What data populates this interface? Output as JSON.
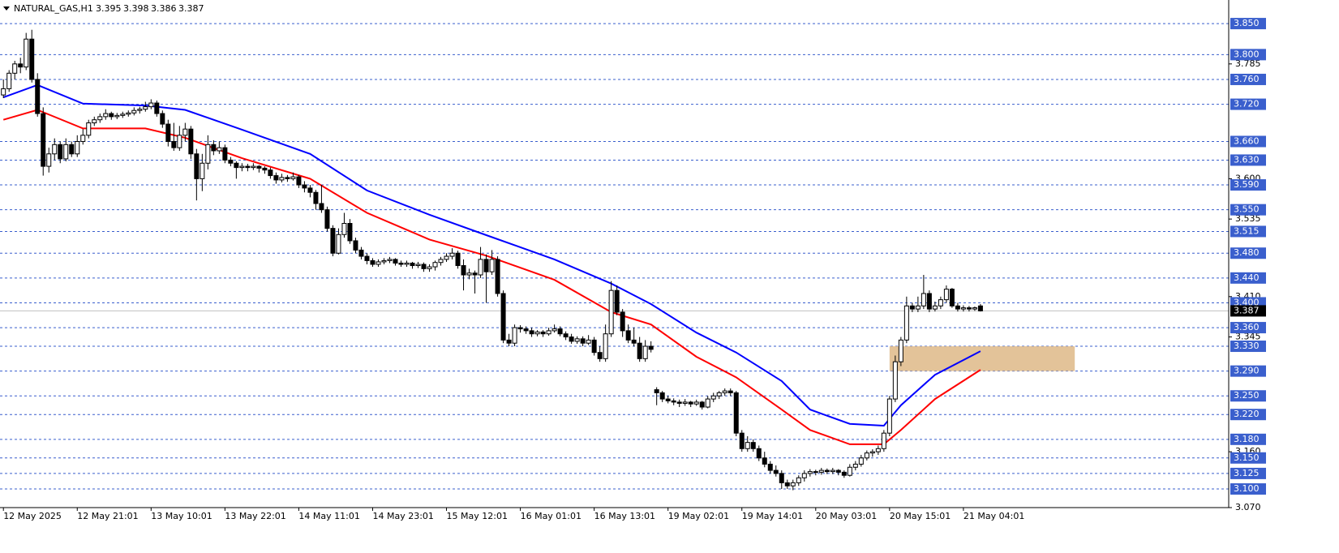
{
  "chart_data": {
    "type": "candlestick",
    "symbol": "NATURAL_GAS,H1",
    "up_color": "#ffffff",
    "down_color": "#000000",
    "ylim": [
      3.07,
      3.888
    ],
    "yticks": [
      3.785,
      {
        "value": 3.6,
        "label": "3.600"
      },
      3.535,
      {
        "value": 3.41,
        "label": "3.410"
      },
      3.345,
      {
        "value": 3.16,
        "label": "3.160"
      },
      {
        "value": 3.07,
        "label": "3.070"
      }
    ],
    "xlim": [
      -0.6,
      215.7
    ],
    "xticks": [
      {
        "value": 0,
        "label": "12 May 2025"
      },
      {
        "value": 13,
        "label": "12 May 21:01"
      },
      {
        "value": 26,
        "label": "13 May 10:01"
      },
      {
        "value": 39,
        "label": "13 May 22:01"
      },
      {
        "value": 52,
        "label": "14 May 11:01"
      },
      {
        "value": 65,
        "label": "14 May 23:01"
      },
      {
        "value": 78,
        "label": "15 May 12:01"
      },
      {
        "value": 91,
        "label": "16 May 01:01"
      },
      {
        "value": 104,
        "label": "16 May 13:01"
      },
      {
        "value": 117,
        "label": "19 May 02:01"
      },
      {
        "value": 130,
        "label": "19 May 14:01"
      },
      {
        "value": 143,
        "label": "20 May 03:01"
      },
      {
        "value": 156,
        "label": "20 May 15:01"
      },
      {
        "value": 169,
        "label": "21 May 04:01"
      }
    ],
    "level_color": "#3a5fcd",
    "levels": [
      {
        "value": 3.85,
        "label": "3.850"
      },
      {
        "value": 3.8,
        "label": "3.800"
      },
      {
        "value": 3.76,
        "label": "3.760"
      },
      {
        "value": 3.72,
        "label": "3.720"
      },
      {
        "value": 3.66,
        "label": "3.660"
      },
      {
        "value": 3.63,
        "label": "3.630"
      },
      {
        "value": 3.59,
        "label": "3.590"
      },
      {
        "value": 3.55,
        "label": "3.550"
      },
      3.515,
      {
        "value": 3.48,
        "label": "3.480"
      },
      {
        "value": 3.44,
        "label": "3.440"
      },
      {
        "value": 3.4,
        "label": "3.400"
      },
      {
        "value": 3.36,
        "label": "3.360"
      },
      {
        "value": 3.33,
        "label": "3.330"
      },
      {
        "value": 3.29,
        "label": "3.290"
      },
      {
        "value": 3.25,
        "label": "3.250"
      },
      {
        "value": 3.22,
        "label": "3.220"
      },
      {
        "value": 3.18,
        "label": "3.180"
      },
      {
        "value": 3.15,
        "label": "3.150"
      },
      3.125,
      {
        "value": 3.1,
        "label": "3.100"
      }
    ],
    "price_line_color": "#c0c0c0",
    "zone": {
      "low": 3.29,
      "high": 3.33,
      "x": [
        156,
        188.6
      ],
      "color": "#deb887"
    },
    "moving_averages": [
      {
        "color": "#0000ff",
        "x": [
          0,
          6,
          14,
          25,
          32,
          42,
          54,
          64,
          75,
          85,
          97,
          107,
          114,
          122,
          129,
          137,
          142,
          149,
          155,
          158,
          164,
          172
        ],
        "values": [
          3.731,
          3.751,
          3.721,
          3.718,
          3.711,
          3.679,
          3.64,
          3.581,
          3.542,
          3.509,
          3.47,
          3.431,
          3.398,
          3.352,
          3.32,
          3.274,
          3.228,
          3.205,
          3.202,
          3.235,
          3.284,
          3.322
        ]
      },
      {
        "color": "#ff0000",
        "x": [
          0,
          6,
          14,
          25,
          32,
          42,
          54,
          64,
          75,
          85,
          97,
          107,
          114,
          122,
          129,
          137,
          142,
          149,
          155,
          158,
          164,
          172
        ],
        "values": [
          3.695,
          3.711,
          3.681,
          3.681,
          3.666,
          3.633,
          3.6,
          3.545,
          3.502,
          3.476,
          3.437,
          3.385,
          3.365,
          3.313,
          3.28,
          3.228,
          3.195,
          3.172,
          3.172,
          3.195,
          3.245,
          3.292
        ]
      }
    ],
    "ohlc": [
      [
        3.735,
        3.76,
        3.73,
        3.745
      ],
      [
        3.745,
        3.775,
        3.74,
        3.77
      ],
      [
        3.77,
        3.79,
        3.76,
        3.785
      ],
      [
        3.785,
        3.795,
        3.77,
        3.78
      ],
      [
        3.78,
        3.835,
        3.775,
        3.825
      ],
      [
        3.825,
        3.84,
        3.755,
        3.76
      ],
      [
        3.76,
        3.77,
        3.7,
        3.705
      ],
      [
        3.705,
        3.715,
        3.605,
        3.62
      ],
      [
        3.62,
        3.65,
        3.61,
        3.64
      ],
      [
        3.64,
        3.665,
        3.63,
        3.655
      ],
      [
        3.655,
        3.66,
        3.625,
        3.632
      ],
      [
        3.632,
        3.665,
        3.628,
        3.655
      ],
      [
        3.655,
        3.66,
        3.635,
        3.64
      ],
      [
        3.64,
        3.67,
        3.635,
        3.66
      ],
      [
        3.66,
        3.68,
        3.655,
        3.67
      ],
      [
        3.67,
        3.695,
        3.665,
        3.69
      ],
      [
        3.69,
        3.7,
        3.685,
        3.695
      ],
      [
        3.695,
        3.705,
        3.69,
        3.7
      ],
      [
        3.7,
        3.712,
        3.695,
        3.705
      ],
      [
        3.705,
        3.708,
        3.695,
        3.7
      ],
      [
        3.7,
        3.706,
        3.696,
        3.702
      ],
      [
        3.702,
        3.708,
        3.698,
        3.704
      ],
      [
        3.704,
        3.71,
        3.7,
        3.706
      ],
      [
        3.706,
        3.715,
        3.702,
        3.71
      ],
      [
        3.71,
        3.716,
        3.705,
        3.712
      ],
      [
        3.712,
        3.724,
        3.708,
        3.716
      ],
      [
        3.716,
        3.728,
        3.712,
        3.722
      ],
      [
        3.722,
        3.726,
        3.7,
        3.705
      ],
      [
        3.705,
        3.71,
        3.682,
        3.688
      ],
      [
        3.688,
        3.695,
        3.652,
        3.66
      ],
      [
        3.66,
        3.69,
        3.645,
        3.65
      ],
      [
        3.65,
        3.685,
        3.645,
        3.67
      ],
      [
        3.67,
        3.69,
        3.66,
        3.68
      ],
      [
        3.68,
        3.685,
        3.632,
        3.64
      ],
      [
        3.64,
        3.648,
        3.565,
        3.6
      ],
      [
        3.6,
        3.64,
        3.58,
        3.625
      ],
      [
        3.625,
        3.67,
        3.615,
        3.655
      ],
      [
        3.655,
        3.662,
        3.638,
        3.645
      ],
      [
        3.645,
        3.66,
        3.64,
        3.65
      ],
      [
        3.65,
        3.655,
        3.625,
        3.63
      ],
      [
        3.63,
        3.635,
        3.62,
        3.625
      ],
      [
        3.625,
        3.628,
        3.6,
        3.618
      ],
      [
        3.618,
        3.625,
        3.612,
        3.62
      ],
      [
        3.62,
        3.624,
        3.612,
        3.618
      ],
      [
        3.618,
        3.625,
        3.614,
        3.62
      ],
      [
        3.62,
        3.622,
        3.61,
        3.617
      ],
      [
        3.617,
        3.62,
        3.608,
        3.614
      ],
      [
        3.614,
        3.618,
        3.6,
        3.605
      ],
      [
        3.605,
        3.61,
        3.592,
        3.598
      ],
      [
        3.598,
        3.608,
        3.594,
        3.602
      ],
      [
        3.602,
        3.606,
        3.595,
        3.6
      ],
      [
        3.6,
        3.61,
        3.597,
        3.603
      ],
      [
        3.603,
        3.606,
        3.585,
        3.59
      ],
      [
        3.59,
        3.596,
        3.578,
        3.585
      ],
      [
        3.585,
        3.59,
        3.57,
        3.578
      ],
      [
        3.578,
        3.582,
        3.55,
        3.56
      ],
      [
        3.56,
        3.59,
        3.545,
        3.55
      ],
      [
        3.55,
        3.555,
        3.515,
        3.52
      ],
      [
        3.52,
        3.525,
        3.475,
        3.48
      ],
      [
        3.48,
        3.52,
        3.478,
        3.51
      ],
      [
        3.51,
        3.545,
        3.505,
        3.528
      ],
      [
        3.528,
        3.535,
        3.495,
        3.5
      ],
      [
        3.5,
        3.505,
        3.48,
        3.485
      ],
      [
        3.485,
        3.49,
        3.47,
        3.475
      ],
      [
        3.475,
        3.48,
        3.462,
        3.468
      ],
      [
        3.468,
        3.472,
        3.458,
        3.462
      ],
      [
        3.462,
        3.47,
        3.458,
        3.466
      ],
      [
        3.466,
        3.472,
        3.462,
        3.468
      ],
      [
        3.468,
        3.474,
        3.464,
        3.47
      ],
      [
        3.47,
        3.472,
        3.46,
        3.464
      ],
      [
        3.464,
        3.468,
        3.458,
        3.462
      ],
      [
        3.462,
        3.468,
        3.458,
        3.464
      ],
      [
        3.464,
        3.466,
        3.455,
        3.46
      ],
      [
        3.46,
        3.466,
        3.456,
        3.462
      ],
      [
        3.462,
        3.465,
        3.45,
        3.455
      ],
      [
        3.455,
        3.462,
        3.45,
        3.458
      ],
      [
        3.458,
        3.468,
        3.452,
        3.465
      ],
      [
        3.465,
        3.474,
        3.46,
        3.47
      ],
      [
        3.47,
        3.48,
        3.466,
        3.475
      ],
      [
        3.475,
        3.488,
        3.47,
        3.48
      ],
      [
        3.48,
        3.484,
        3.455,
        3.46
      ],
      [
        3.46,
        3.47,
        3.42,
        3.445
      ],
      [
        3.445,
        3.455,
        3.438,
        3.448
      ],
      [
        3.448,
        3.452,
        3.415,
        3.445
      ],
      [
        3.445,
        3.49,
        3.44,
        3.47
      ],
      [
        3.47,
        3.478,
        3.4,
        3.45
      ],
      [
        3.45,
        3.485,
        3.445,
        3.47
      ],
      [
        3.47,
        3.475,
        3.41,
        3.415
      ],
      [
        3.415,
        3.42,
        3.335,
        3.34
      ],
      [
        3.34,
        3.35,
        3.33,
        3.335
      ],
      [
        3.335,
        3.365,
        3.33,
        3.36
      ],
      [
        3.36,
        3.364,
        3.352,
        3.358
      ],
      [
        3.358,
        3.362,
        3.35,
        3.355
      ],
      [
        3.355,
        3.36,
        3.345,
        3.35
      ],
      [
        3.35,
        3.356,
        3.346,
        3.353
      ],
      [
        3.353,
        3.356,
        3.345,
        3.35
      ],
      [
        3.35,
        3.36,
        3.347,
        3.355
      ],
      [
        3.355,
        3.365,
        3.352,
        3.358
      ],
      [
        3.358,
        3.362,
        3.346,
        3.35
      ],
      [
        3.35,
        3.354,
        3.34,
        3.345
      ],
      [
        3.345,
        3.35,
        3.334,
        3.338
      ],
      [
        3.338,
        3.346,
        3.334,
        3.342
      ],
      [
        3.342,
        3.346,
        3.33,
        3.335
      ],
      [
        3.335,
        3.348,
        3.332,
        3.34
      ],
      [
        3.34,
        3.345,
        3.315,
        3.32
      ],
      [
        3.32,
        3.33,
        3.305,
        3.31
      ],
      [
        3.31,
        3.365,
        3.305,
        3.35
      ],
      [
        3.35,
        3.435,
        3.345,
        3.42
      ],
      [
        3.42,
        3.428,
        3.38,
        3.385
      ],
      [
        3.385,
        3.39,
        3.345,
        3.355
      ],
      [
        3.355,
        3.365,
        3.335,
        3.34
      ],
      [
        3.34,
        3.36,
        3.33,
        3.335
      ],
      [
        3.335,
        3.345,
        3.305,
        3.31
      ],
      [
        3.31,
        3.34,
        3.305,
        3.33
      ],
      [
        3.33,
        3.338,
        3.32,
        3.325
      ],
      [
        3.26,
        3.264,
        3.235,
        3.255
      ],
      [
        3.255,
        3.258,
        3.24,
        3.245
      ],
      [
        3.245,
        3.25,
        3.238,
        3.242
      ],
      [
        3.242,
        3.246,
        3.235,
        3.24
      ],
      [
        3.24,
        3.244,
        3.232,
        3.238
      ],
      [
        3.238,
        3.245,
        3.234,
        3.24
      ],
      [
        3.24,
        3.242,
        3.232,
        3.237
      ],
      [
        3.237,
        3.244,
        3.234,
        3.24
      ],
      [
        3.24,
        3.242,
        3.228,
        3.232
      ],
      [
        3.232,
        3.25,
        3.23,
        3.245
      ],
      [
        3.245,
        3.255,
        3.24,
        3.25
      ],
      [
        3.25,
        3.258,
        3.245,
        3.255
      ],
      [
        3.255,
        3.262,
        3.25,
        3.258
      ],
      [
        3.258,
        3.262,
        3.25,
        3.255
      ],
      [
        3.255,
        3.258,
        3.185,
        3.19
      ],
      [
        3.19,
        3.195,
        3.16,
        3.165
      ],
      [
        3.165,
        3.185,
        3.16,
        3.175
      ],
      [
        3.175,
        3.18,
        3.16,
        3.165
      ],
      [
        3.165,
        3.17,
        3.145,
        3.15
      ],
      [
        3.15,
        3.16,
        3.135,
        3.14
      ],
      [
        3.14,
        3.145,
        3.125,
        3.13
      ],
      [
        3.13,
        3.138,
        3.12,
        3.125
      ],
      [
        3.125,
        3.13,
        3.1,
        3.11
      ],
      [
        3.11,
        3.115,
        3.1,
        3.105
      ],
      [
        3.105,
        3.115,
        3.098,
        3.11
      ],
      [
        3.11,
        3.122,
        3.105,
        3.118
      ],
      [
        3.118,
        3.13,
        3.112,
        3.125
      ],
      [
        3.125,
        3.132,
        3.12,
        3.128
      ],
      [
        3.128,
        3.131,
        3.122,
        3.127
      ],
      [
        3.127,
        3.134,
        3.123,
        3.13
      ],
      [
        3.13,
        3.133,
        3.124,
        3.128
      ],
      [
        3.128,
        3.134,
        3.124,
        3.13
      ],
      [
        3.13,
        3.132,
        3.122,
        3.127
      ],
      [
        3.127,
        3.13,
        3.118,
        3.122
      ],
      [
        3.122,
        3.14,
        3.12,
        3.135
      ],
      [
        3.135,
        3.145,
        3.13,
        3.14
      ],
      [
        3.14,
        3.155,
        3.136,
        3.15
      ],
      [
        3.15,
        3.162,
        3.146,
        3.158
      ],
      [
        3.158,
        3.164,
        3.152,
        3.16
      ],
      [
        3.16,
        3.17,
        3.155,
        3.165
      ],
      [
        3.165,
        3.195,
        3.16,
        3.19
      ],
      [
        3.19,
        3.25,
        3.185,
        3.245
      ],
      [
        3.245,
        3.315,
        3.24,
        3.305
      ],
      [
        3.305,
        3.345,
        3.298,
        3.34
      ],
      [
        3.34,
        3.41,
        3.335,
        3.395
      ],
      [
        3.395,
        3.4,
        3.385,
        3.39
      ],
      [
        3.39,
        3.41,
        3.385,
        3.395
      ],
      [
        3.395,
        3.445,
        3.39,
        3.415
      ],
      [
        3.415,
        3.42,
        3.385,
        3.39
      ],
      [
        3.39,
        3.402,
        3.386,
        3.395
      ],
      [
        3.395,
        3.41,
        3.39,
        3.405
      ],
      [
        3.405,
        3.428,
        3.4,
        3.422
      ],
      [
        3.422,
        3.424,
        3.392,
        3.395
      ],
      [
        3.395,
        3.4,
        3.386,
        3.39
      ],
      [
        3.39,
        3.396,
        3.386,
        3.392
      ],
      [
        3.392,
        3.395,
        3.386,
        3.39
      ],
      [
        3.39,
        3.394,
        3.387,
        3.392
      ],
      [
        3.395,
        3.398,
        3.386,
        3.387
      ]
    ]
  }
}
